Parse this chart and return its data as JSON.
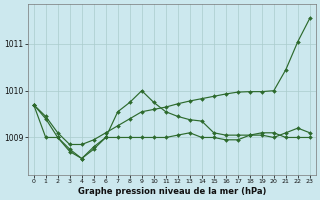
{
  "title": "Graphe pression niveau de la mer (hPa)",
  "background_color": "#cce8ee",
  "grid_color": "#aacccc",
  "line_color": "#2d6a2d",
  "x_ticks": [
    0,
    1,
    2,
    3,
    4,
    5,
    6,
    7,
    8,
    9,
    10,
    11,
    12,
    13,
    14,
    15,
    16,
    17,
    18,
    19,
    20,
    21,
    22,
    23
  ],
  "y_ticks": [
    1009,
    1010,
    1011
  ],
  "ylim": [
    1008.2,
    1011.85
  ],
  "xlim": [
    -0.5,
    23.5
  ],
  "line1_y": [
    1009.7,
    1009.45,
    1009.1,
    1008.85,
    1008.85,
    1008.95,
    1009.1,
    1009.25,
    1009.4,
    1009.55,
    1009.6,
    1009.65,
    1009.72,
    1009.78,
    1009.83,
    1009.88,
    1009.93,
    1009.97,
    1009.98,
    1009.98,
    1010.0,
    1010.45,
    1011.05,
    1011.55
  ],
  "line2_y": [
    1009.7,
    1009.4,
    1009.0,
    1008.75,
    1008.55,
    1008.8,
    1009.0,
    1009.55,
    1009.75,
    1010.0,
    1009.75,
    1009.55,
    1009.45,
    1009.38,
    1009.35,
    1009.1,
    1009.05,
    1009.05,
    1009.05,
    1009.05,
    1009.0,
    1009.1,
    1009.2,
    1009.1
  ],
  "line3_y": [
    1009.7,
    1009.0,
    1009.0,
    1008.7,
    1008.55,
    1008.75,
    1009.0,
    1009.0,
    1009.0,
    1009.0,
    1009.0,
    1009.0,
    1009.05,
    1009.1,
    1009.0,
    1009.0,
    1008.95,
    1008.95,
    1009.05,
    1009.1,
    1009.1,
    1009.0,
    1009.0,
    1009.0
  ]
}
